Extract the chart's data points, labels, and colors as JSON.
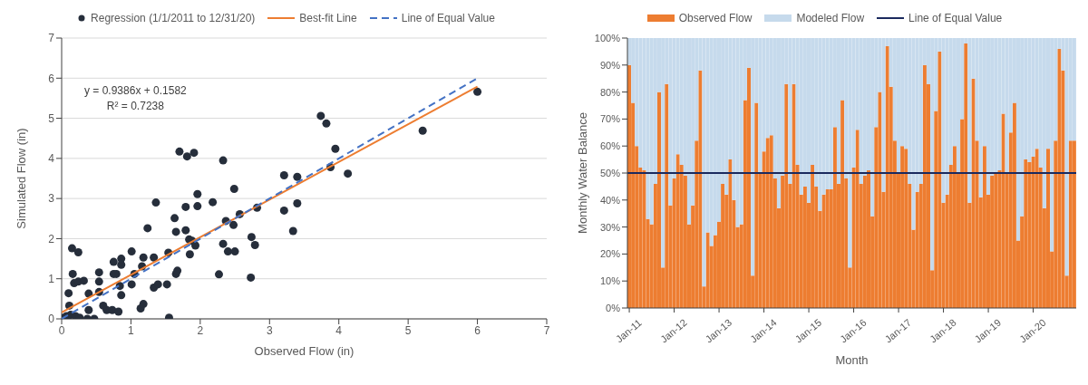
{
  "chart_data": [
    {
      "type": "scatter",
      "xlabel": "Observed Flow (in)",
      "ylabel": "Simulated Flow (in)",
      "xlim": [
        0,
        7
      ],
      "ylim": [
        0,
        7
      ],
      "xticks": [
        0,
        1,
        2,
        3,
        4,
        5,
        6,
        7
      ],
      "yticks": [
        0,
        1,
        2,
        3,
        4,
        5,
        6,
        7
      ],
      "grid": "y",
      "legend": "top",
      "annotations": [
        "y = 0.9386x + 0.1582",
        "R² = 0.7238"
      ],
      "series": [
        {
          "name": "Regression (1/1/2011 to 12/31/20)",
          "type": "scatter",
          "color": "#262e3b",
          "marker": "circle",
          "x": [
            0.15,
            0.24,
            0.16,
            0.18,
            0.24,
            0.32,
            0.1,
            0.11,
            0.13,
            0.03,
            0.07,
            0.2,
            0.26,
            0.37,
            0.39,
            0.47,
            0.39,
            0.54,
            0.54,
            0.54,
            0.6,
            0.65,
            0.75,
            0.86,
            0.86,
            0.75,
            0.79,
            0.84,
            0.86,
            0.73,
            0.82,
            1.01,
            1.01,
            1.05,
            1.16,
            1.18,
            1.14,
            1.18,
            1.24,
            1.33,
            1.36,
            1.33,
            1.39,
            1.52,
            1.54,
            1.55,
            1.63,
            1.65,
            1.65,
            1.67,
            1.79,
            1.79,
            1.7,
            1.81,
            1.91,
            1.96,
            1.96,
            1.84,
            1.88,
            1.93,
            1.85,
            2.18,
            2.27,
            2.33,
            2.49,
            2.37,
            2.48,
            2.33,
            2.4,
            2.5,
            2.57,
            2.82,
            2.74,
            2.79,
            2.73,
            3.21,
            3.21,
            3.4,
            3.4,
            3.34,
            3.74,
            3.82,
            3.95,
            3.88,
            4.13,
            5.21,
            6.0
          ],
          "values": [
            1.76,
            1.66,
            1.12,
            0.89,
            0.93,
            0.95,
            0.64,
            0.33,
            0.1,
            0.03,
            0.07,
            0.07,
            0.03,
            0,
            0.22,
            0,
            0.63,
            1.16,
            0.93,
            0.67,
            0.33,
            0.22,
            1.42,
            1.5,
            1.35,
            1.12,
            1.12,
            0.82,
            0.59,
            0.22,
            0.18,
            1.68,
            0.86,
            1.12,
            1.31,
            1.53,
            0.26,
            0.37,
            2.26,
            1.53,
            2.9,
            0.78,
            0.86,
            0.86,
            1.65,
            0.03,
            2.51,
            2.17,
            1.12,
            1.2,
            2.79,
            2.21,
            4.17,
            4.05,
            4.14,
            3.11,
            2.81,
            1.98,
            1.95,
            1.83,
            1.61,
            2.91,
            1.11,
            3.95,
            3.24,
            2.44,
            2.34,
            1.87,
            1.68,
            1.68,
            2.61,
            2.77,
            2.04,
            1.84,
            1.03,
            2.7,
            3.58,
            3.54,
            2.88,
            2.19,
            5.06,
            4.87,
            4.24,
            3.78,
            3.62,
            4.69,
            5.66
          ]
        },
        {
          "name": "Best-fit Line",
          "type": "line",
          "color": "#ed7d31",
          "marker": "none",
          "line_style": "solid",
          "x": [
            0,
            6
          ],
          "values": [
            0.16,
            5.79
          ]
        },
        {
          "name": "Line of Equal Value",
          "type": "line",
          "color": "#4472c4",
          "marker": "none",
          "line_style": "dashed",
          "x": [
            0,
            6
          ],
          "values": [
            0,
            6
          ]
        }
      ]
    },
    {
      "type": "bar",
      "stacked": true,
      "xlabel": "Month",
      "ylabel": "Monthly Water Balance",
      "legend": "top",
      "categories": [
        "Jan-11",
        null,
        null,
        null,
        null,
        null,
        null,
        null,
        null,
        null,
        null,
        null,
        "Jan-12",
        null,
        null,
        null,
        null,
        null,
        null,
        null,
        null,
        null,
        null,
        null,
        "Jan-13",
        null,
        null,
        null,
        null,
        null,
        null,
        null,
        null,
        null,
        null,
        null,
        "Jan-14",
        null,
        null,
        null,
        null,
        null,
        null,
        null,
        null,
        null,
        null,
        null,
        "Jan-15",
        null,
        null,
        null,
        null,
        null,
        null,
        null,
        null,
        null,
        null,
        null,
        "Jan-16",
        null,
        null,
        null,
        null,
        null,
        null,
        null,
        null,
        null,
        null,
        null,
        "Jan-17",
        null,
        null,
        null,
        null,
        null,
        null,
        null,
        null,
        null,
        null,
        null,
        "Jan-18",
        null,
        null,
        null,
        null,
        null,
        null,
        null,
        null,
        null,
        null,
        null,
        "Jan-19",
        null,
        null,
        null,
        null,
        null,
        null,
        null,
        null,
        null,
        null,
        null,
        "Jan-20",
        null,
        null,
        null,
        null,
        null,
        null,
        null,
        null,
        null,
        null,
        null
      ],
      "ylim": [
        0,
        100
      ],
      "yticks": [
        {
          "value": 0,
          "label": "0%"
        },
        {
          "value": 10,
          "label": "10%"
        },
        {
          "value": 20,
          "label": "20%"
        },
        {
          "value": 30,
          "label": "30%"
        },
        {
          "value": 40,
          "label": "40%"
        },
        {
          "value": 50,
          "label": "50%"
        },
        {
          "value": 60,
          "label": "60%"
        },
        {
          "value": 70,
          "label": "70%"
        },
        {
          "value": 80,
          "label": "80%"
        },
        {
          "value": 90,
          "label": "90%"
        },
        {
          "value": 100,
          "label": "100%"
        }
      ],
      "ref_lines": [
        {
          "axis": "y",
          "value": 50,
          "label": "Line of Equal Value",
          "color": "#1b2a5e"
        }
      ],
      "series": [
        {
          "name": "Observed Flow",
          "color": "#ed7d31",
          "values": [
            90,
            76,
            60,
            52,
            51,
            33,
            31,
            46,
            80,
            15,
            83,
            38,
            48,
            57,
            53,
            49,
            31,
            38,
            62,
            88,
            8,
            28,
            23,
            27,
            32,
            46,
            42,
            55,
            40,
            30,
            31,
            77,
            89,
            12,
            76,
            50,
            58,
            63,
            64,
            48,
            37,
            49,
            83,
            46,
            83,
            53,
            42,
            45,
            39,
            53,
            45,
            36,
            42,
            44,
            44,
            67,
            46,
            77,
            48,
            15,
            52,
            66,
            46,
            49,
            51,
            34,
            67,
            80,
            43,
            97,
            82,
            62,
            50,
            60,
            59,
            46,
            29,
            43,
            46,
            90,
            83,
            14,
            73,
            95,
            39,
            42,
            53,
            60,
            50,
            70,
            98,
            39,
            85,
            62,
            41,
            60,
            42,
            49,
            50,
            51,
            72,
            50,
            65,
            76,
            25,
            34,
            55,
            54,
            56,
            59,
            52,
            37,
            59,
            21,
            62,
            96,
            88,
            12,
            62,
            62
          ]
        },
        {
          "name": "Modeled Flow",
          "color": "#c6daec",
          "values": [
            10,
            24,
            40,
            48,
            49,
            67,
            69,
            54,
            20,
            85,
            17,
            62,
            52,
            43,
            47,
            51,
            69,
            62,
            38,
            12,
            92,
            72,
            77,
            73,
            68,
            54,
            58,
            45,
            60,
            70,
            69,
            23,
            11,
            88,
            24,
            50,
            42,
            37,
            36,
            52,
            63,
            51,
            17,
            54,
            17,
            47,
            58,
            55,
            61,
            47,
            55,
            64,
            58,
            56,
            56,
            33,
            54,
            23,
            52,
            85,
            48,
            34,
            54,
            51,
            49,
            66,
            33,
            20,
            57,
            3,
            18,
            38,
            50,
            40,
            41,
            54,
            71,
            57,
            54,
            10,
            17,
            86,
            27,
            5,
            61,
            58,
            47,
            40,
            50,
            30,
            2,
            61,
            15,
            38,
            59,
            40,
            58,
            51,
            50,
            49,
            28,
            50,
            35,
            24,
            75,
            66,
            45,
            46,
            44,
            41,
            48,
            63,
            41,
            79,
            38,
            4,
            12,
            88,
            38,
            38
          ]
        }
      ]
    }
  ]
}
